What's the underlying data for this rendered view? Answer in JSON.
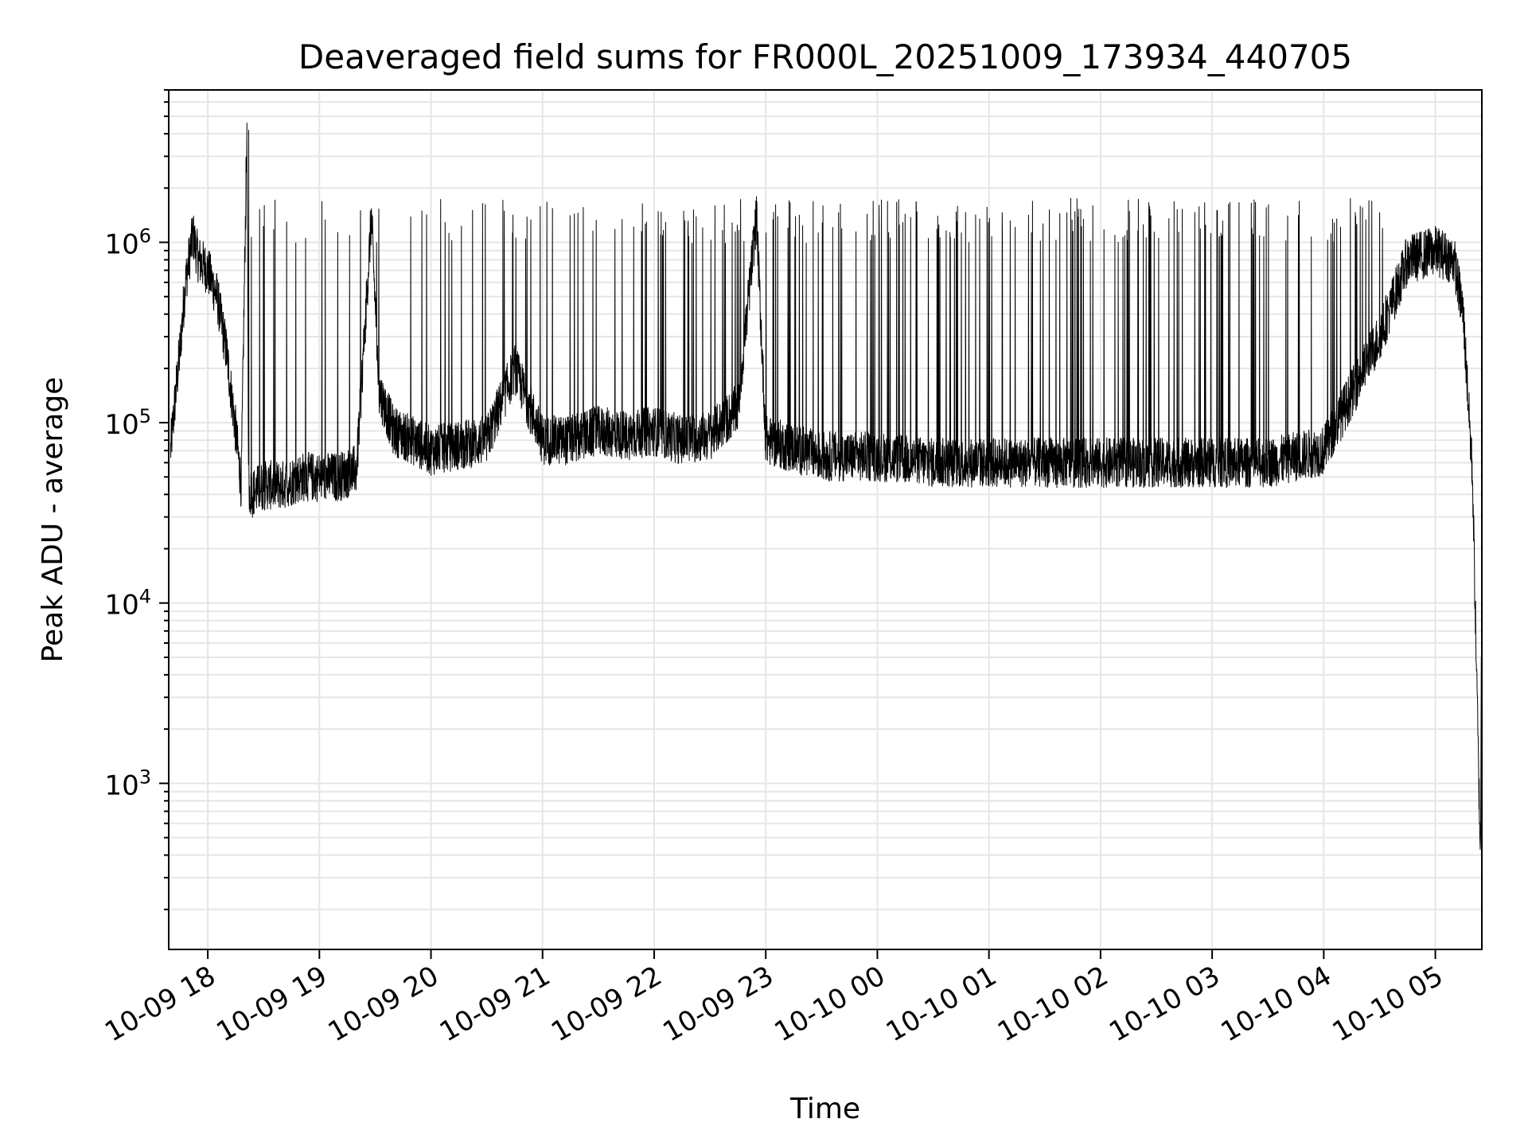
{
  "chart_data": {
    "type": "line",
    "title": "Deaveraged field sums for FR000L_20251009_173934_440705",
    "xlabel": "Time",
    "ylabel": "Peak ADU - average",
    "yscale": "log",
    "ylim": [
      120,
      7000000
    ],
    "xlim": [
      "2025-10-09 17:39",
      "2025-10-10 05:25"
    ],
    "grid": true,
    "x_ticks": [
      "10-09 18",
      "10-09 19",
      "10-09 20",
      "10-09 21",
      "10-09 22",
      "10-09 23",
      "10-10 00",
      "10-10 01",
      "10-10 02",
      "10-10 03",
      "10-10 04",
      "10-10 05"
    ],
    "y_ticks": [
      {
        "base": "10",
        "exp": "3",
        "value": 1000
      },
      {
        "base": "10",
        "exp": "4",
        "value": 10000
      },
      {
        "base": "10",
        "exp": "5",
        "value": 100000
      },
      {
        "base": "10",
        "exp": "6",
        "value": 1000000
      }
    ],
    "line_color": "#000000",
    "series": [
      {
        "x": [
          "2025-10-09 17:40",
          "2025-10-09 17:42",
          "2025-10-09 17:45",
          "2025-10-09 17:48",
          "2025-10-09 17:52",
          "2025-10-09 17:55",
          "2025-10-09 18:00",
          "2025-10-09 18:05",
          "2025-10-09 18:10",
          "2025-10-09 18:15",
          "2025-10-09 18:18",
          "2025-10-09 18:21",
          "2025-10-09 18:22",
          "2025-10-09 18:23",
          "2025-10-09 18:30",
          "2025-10-09 18:40",
          "2025-10-09 18:50",
          "2025-10-09 19:00",
          "2025-10-09 19:10",
          "2025-10-09 19:20",
          "2025-10-09 19:28",
          "2025-10-09 19:32",
          "2025-10-09 19:40",
          "2025-10-09 19:50",
          "2025-10-09 20:00",
          "2025-10-09 20:15",
          "2025-10-09 20:30",
          "2025-10-09 20:45",
          "2025-10-09 21:00",
          "2025-10-09 21:15",
          "2025-10-09 21:30",
          "2025-10-09 21:45",
          "2025-10-09 22:00",
          "2025-10-09 22:15",
          "2025-10-09 22:30",
          "2025-10-09 22:45",
          "2025-10-09 22:55",
          "2025-10-09 23:00",
          "2025-10-09 23:30",
          "2025-10-10 00:00",
          "2025-10-10 00:30",
          "2025-10-10 01:00",
          "2025-10-10 01:30",
          "2025-10-10 02:00",
          "2025-10-10 02:30",
          "2025-10-10 03:00",
          "2025-10-10 03:30",
          "2025-10-10 04:00",
          "2025-10-10 04:30",
          "2025-10-10 04:45",
          "2025-10-10 05:00",
          "2025-10-10 05:10",
          "2025-10-10 05:15",
          "2025-10-10 05:20",
          "2025-10-10 05:24"
        ],
        "y": [
          70000,
          120000,
          250000,
          600000,
          1100000,
          800000,
          700000,
          500000,
          250000,
          90000,
          45000,
          4200000,
          45000,
          40000,
          45000,
          45000,
          50000,
          50000,
          50000,
          55000,
          1400000,
          150000,
          90000,
          80000,
          70000,
          75000,
          80000,
          200000,
          80000,
          80000,
          90000,
          85000,
          90000,
          80000,
          85000,
          120000,
          1400000,
          80000,
          65000,
          65000,
          60000,
          60000,
          60000,
          60000,
          60000,
          60000,
          60000,
          70000,
          300000,
          800000,
          900000,
          800000,
          400000,
          50000,
          500
        ]
      }
    ],
    "spikes": {
      "description": "dense vertical oscillations between the baseline and roughly 1.0e6 - 1.5e6 throughout 18:20 - 04:50",
      "peak_level": 1400000
    }
  }
}
